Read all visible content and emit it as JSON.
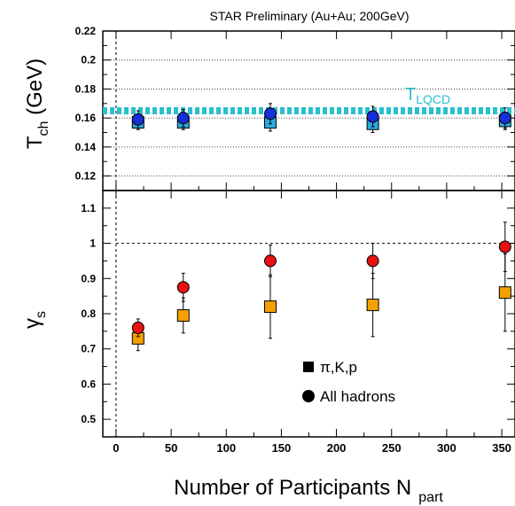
{
  "chart_data": [
    {
      "type": "scatter",
      "title": "STAR Preliminary (Au+Au; 200GeV)",
      "ylabel": {
        "main": "T",
        "sub": "ch",
        "rest": " (GeV)"
      },
      "xlim": [
        -12,
        362
      ],
      "ylim": [
        0.11,
        0.22
      ],
      "yticks": [
        0.12,
        0.14,
        0.16,
        0.18,
        0.2,
        0.22
      ],
      "grid": "horizontal dotted",
      "band": {
        "y": 0.165,
        "label": "T",
        "label_sub": "LQCD",
        "color": "#2BBFD0"
      },
      "series": [
        {
          "marker": "square",
          "color": "#29A9E0",
          "x": [
            20,
            61,
            140,
            233,
            353
          ],
          "y": [
            0.157,
            0.157,
            0.157,
            0.156,
            0.158
          ],
          "err": [
            0.005,
            0.005,
            0.006,
            0.006,
            0.006
          ]
        },
        {
          "marker": "circle",
          "color": "#1630D8",
          "x": [
            20,
            61,
            140,
            233,
            353
          ],
          "y": [
            0.159,
            0.16,
            0.163,
            0.161,
            0.16
          ],
          "err": [
            0.006,
            0.006,
            0.007,
            0.007,
            0.007
          ]
        }
      ]
    },
    {
      "type": "scatter",
      "ylabel": {
        "main": "γ",
        "sub": "s"
      },
      "xlabel": {
        "main": "Number of Participants N",
        "sub": "part"
      },
      "xlim": [
        -12,
        362
      ],
      "ylim": [
        0.45,
        1.15
      ],
      "yticks": [
        0.5,
        0.6,
        0.7,
        0.8,
        0.9,
        1,
        1.1
      ],
      "xticks": [
        0,
        50,
        100,
        150,
        200,
        250,
        300,
        350
      ],
      "reference_line": 1,
      "series": [
        {
          "name": "π,K,p",
          "marker": "square",
          "color": "#F5A000",
          "x": [
            20,
            61,
            140,
            233,
            353
          ],
          "y": [
            0.73,
            0.795,
            0.82,
            0.825,
            0.86
          ],
          "err": [
            0.035,
            0.05,
            0.09,
            0.09,
            0.11
          ]
        },
        {
          "name": "All hadrons",
          "marker": "circle",
          "color": "#E81010",
          "x": [
            20,
            61,
            140,
            233,
            353
          ],
          "y": [
            0.76,
            0.875,
            0.95,
            0.95,
            0.99
          ],
          "err": [
            0.025,
            0.04,
            0.045,
            0.05,
            0.07
          ]
        }
      ],
      "legend": "bottom-right"
    }
  ]
}
